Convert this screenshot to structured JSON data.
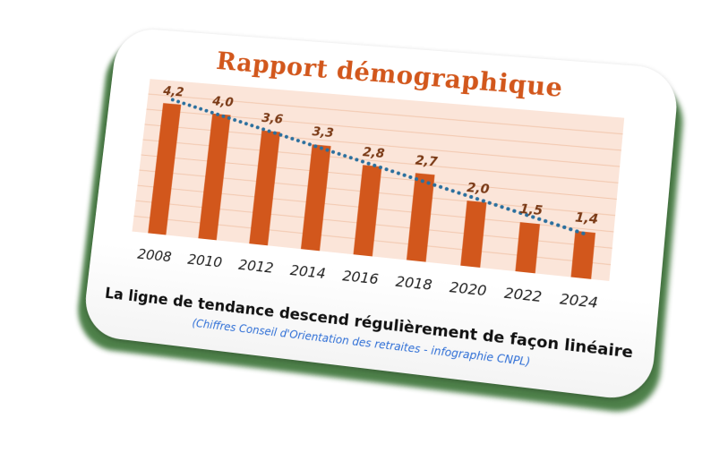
{
  "title": "Rapport démographique",
  "caption": "La ligne de tendance descend régulièrement de façon linéaire",
  "source": "(Chiffres Conseil d'Orientation des retraites - infographie CNPL)",
  "colors": {
    "title": "#d2571c",
    "bar": "#d2571c",
    "trendline": "#2a6f9e",
    "plot_background": "#fbe5d9",
    "grid": "#f2c7ae",
    "value_label": "#7a3a16",
    "caption": "#111111",
    "source": "#2f6fd6",
    "card_border": "#2e6a2a"
  },
  "chart_data": {
    "type": "bar",
    "categories": [
      "2008",
      "2010",
      "2012",
      "2014",
      "2016",
      "2018",
      "2020",
      "2022",
      "2024"
    ],
    "values": [
      4.2,
      4.0,
      3.6,
      3.3,
      2.8,
      2.7,
      2.0,
      1.5,
      1.4
    ],
    "labels": [
      "4,2",
      "4,0",
      "3,6",
      "3,3",
      "2,8",
      "2,7",
      "2,0",
      "1,5",
      "1,4"
    ],
    "title": "Rapport démographique",
    "xlabel": "",
    "ylabel": "",
    "ylim": [
      0,
      4.5
    ],
    "grid": true,
    "legend": "none",
    "trendline": {
      "type": "linear",
      "style": "dotted"
    }
  }
}
